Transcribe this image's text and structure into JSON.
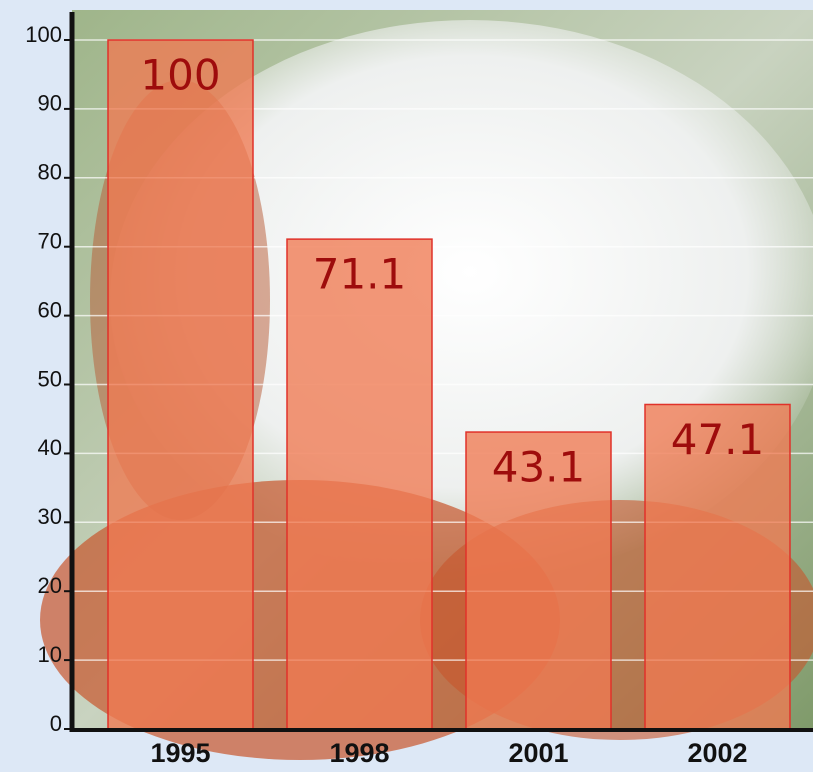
{
  "chart_data": {
    "type": "bar",
    "categories": [
      "1995",
      "1998",
      "2001",
      "2002"
    ],
    "values": [
      100,
      71.1,
      43.1,
      47.1
    ],
    "color": "#f07a52",
    "ylim": [
      0,
      100
    ],
    "yticks": [
      0,
      10,
      20,
      30,
      40,
      50,
      60,
      70,
      80,
      90,
      100
    ],
    "grid": true
  }
}
